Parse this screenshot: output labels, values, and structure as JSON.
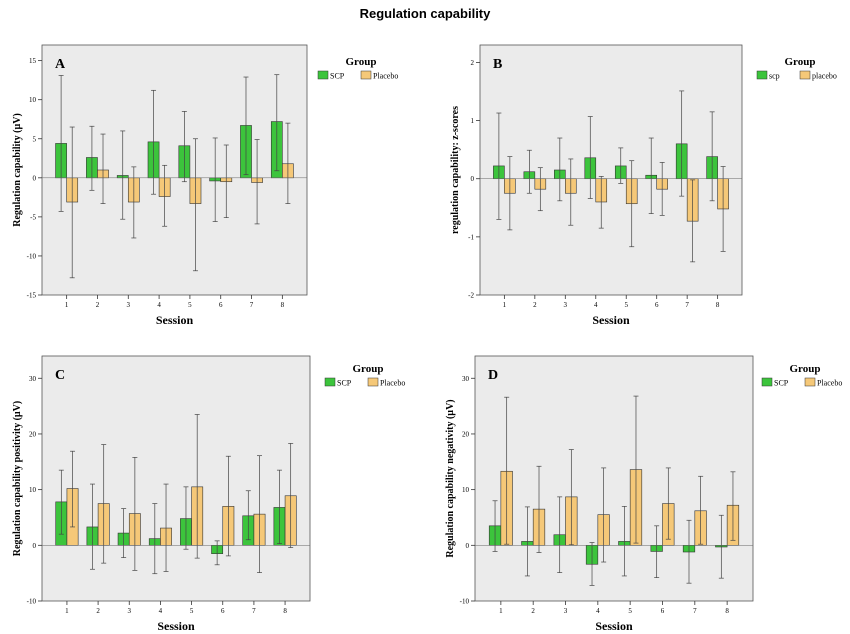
{
  "figure_title": "Regulation capability",
  "colors": {
    "scp": "#3cc43c",
    "placebo": "#f5c878",
    "plot_bg": "#ebebeb",
    "bar_stroke": "#333333"
  },
  "chart_data": [
    {
      "type": "bar",
      "panel_label": "A",
      "title": "",
      "xlabel": "Session",
      "ylabel": "Regulation capability (µV)",
      "legend_title": "Group",
      "legend_position": "top-right",
      "categories": [
        "1",
        "2",
        "3",
        "4",
        "5",
        "6",
        "7",
        "8"
      ],
      "ylim": [
        -15,
        17
      ],
      "yticks": [
        -15,
        -10,
        -5,
        0,
        5,
        10,
        15
      ],
      "series": [
        {
          "name": "SCP",
          "color_key": "scp",
          "values": [
            4.4,
            2.6,
            0.3,
            4.6,
            4.1,
            -0.4,
            6.7,
            7.2
          ],
          "err_low": [
            -4.3,
            -1.6,
            -5.3,
            -2.1,
            -0.5,
            -5.6,
            0.4,
            0.9
          ],
          "err_high": [
            13.1,
            6.6,
            6.0,
            11.2,
            8.5,
            5.1,
            12.9,
            13.2
          ]
        },
        {
          "name": "Placebo",
          "color_key": "placebo",
          "values": [
            -3.1,
            1.0,
            -3.1,
            -2.4,
            -3.3,
            -0.5,
            -0.6,
            1.8
          ],
          "err_low": [
            -12.8,
            -3.3,
            -7.7,
            -6.2,
            -11.9,
            -5.1,
            -5.9,
            -3.3
          ],
          "err_high": [
            6.5,
            5.6,
            1.4,
            1.6,
            5.0,
            4.2,
            4.9,
            7.0
          ]
        }
      ]
    },
    {
      "type": "bar",
      "panel_label": "B",
      "title": "",
      "xlabel": "Session",
      "ylabel": "regulation capability: z-scores",
      "legend_title": "Group",
      "legend_position": "top-right",
      "categories": [
        "1",
        "2",
        "3",
        "4",
        "5",
        "6",
        "7",
        "8"
      ],
      "ylim": [
        -2,
        2.3
      ],
      "yticks": [
        -2,
        -1,
        0,
        1,
        2
      ],
      "series": [
        {
          "name": "scp",
          "color_key": "scp",
          "values": [
            0.22,
            0.12,
            0.15,
            0.36,
            0.22,
            0.06,
            0.6,
            0.38
          ],
          "err_low": [
            -0.7,
            -0.25,
            -0.38,
            -0.34,
            -0.08,
            -0.6,
            -0.3,
            -0.38
          ],
          "err_high": [
            1.13,
            0.49,
            0.7,
            1.07,
            0.53,
            0.7,
            1.51,
            1.15
          ]
        },
        {
          "name": "placebo",
          "color_key": "placebo",
          "values": [
            -0.25,
            -0.18,
            -0.25,
            -0.4,
            -0.43,
            -0.18,
            -0.73,
            -0.52
          ],
          "err_low": [
            -0.88,
            -0.55,
            -0.8,
            -0.85,
            -1.17,
            -0.63,
            -1.43,
            -1.25
          ],
          "err_high": [
            0.38,
            0.19,
            0.34,
            0.04,
            0.31,
            0.28,
            -0.02,
            0.21
          ]
        }
      ]
    },
    {
      "type": "bar",
      "panel_label": "C",
      "title": "",
      "xlabel": "Session",
      "ylabel": "Regulation capability positivity (µV)",
      "legend_title": "Group",
      "legend_position": "top-right",
      "categories": [
        "1",
        "2",
        "3",
        "4",
        "5",
        "6",
        "7",
        "8"
      ],
      "ylim": [
        -10,
        34
      ],
      "yticks": [
        -10,
        0,
        10,
        20,
        30
      ],
      "series": [
        {
          "name": "SCP",
          "color_key": "scp",
          "values": [
            7.8,
            3.3,
            2.2,
            1.2,
            4.8,
            -1.5,
            5.3,
            6.8
          ],
          "err_low": [
            2.0,
            -4.3,
            -2.2,
            -5.1,
            -0.7,
            -3.5,
            1.0,
            0.3
          ],
          "err_high": [
            13.5,
            11.0,
            6.6,
            7.5,
            10.5,
            0.8,
            9.8,
            13.5
          ]
        },
        {
          "name": "Placebo",
          "color_key": "placebo",
          "values": [
            10.2,
            7.5,
            5.7,
            3.1,
            10.5,
            7.0,
            5.6,
            8.9
          ],
          "err_low": [
            3.3,
            -3.2,
            -4.5,
            -4.7,
            -2.3,
            -1.9,
            -4.9,
            -0.4
          ],
          "err_high": [
            16.9,
            18.1,
            15.8,
            11.0,
            23.5,
            16.0,
            16.1,
            18.3
          ]
        }
      ]
    },
    {
      "type": "bar",
      "panel_label": "D",
      "title": "",
      "xlabel": "Session",
      "ylabel": "Regulation capability negativity (µV)",
      "legend_title": "Group",
      "legend_position": "top-right",
      "categories": [
        "1",
        "2",
        "3",
        "4",
        "5",
        "6",
        "7",
        "8"
      ],
      "ylim": [
        -10,
        34
      ],
      "yticks": [
        -10,
        0,
        10,
        20,
        30
      ],
      "series": [
        {
          "name": "SCP",
          "color_key": "scp",
          "values": [
            3.5,
            0.7,
            1.9,
            -3.4,
            0.7,
            -1.1,
            -1.2,
            -0.3
          ],
          "err_low": [
            -1.1,
            -5.5,
            -4.9,
            -7.2,
            -5.5,
            -5.8,
            -6.8,
            -5.9
          ],
          "err_high": [
            8.0,
            6.9,
            8.7,
            0.5,
            7.0,
            3.5,
            4.5,
            5.4
          ]
        },
        {
          "name": "Placebo",
          "color_key": "placebo",
          "values": [
            13.3,
            6.5,
            8.7,
            5.5,
            13.6,
            7.5,
            6.2,
            7.2
          ],
          "err_low": [
            0.2,
            -1.3,
            0.1,
            -3.0,
            0.4,
            1.1,
            0.2,
            0.9
          ],
          "err_high": [
            26.6,
            14.2,
            17.2,
            13.9,
            26.8,
            13.9,
            12.4,
            13.2
          ]
        }
      ]
    }
  ]
}
